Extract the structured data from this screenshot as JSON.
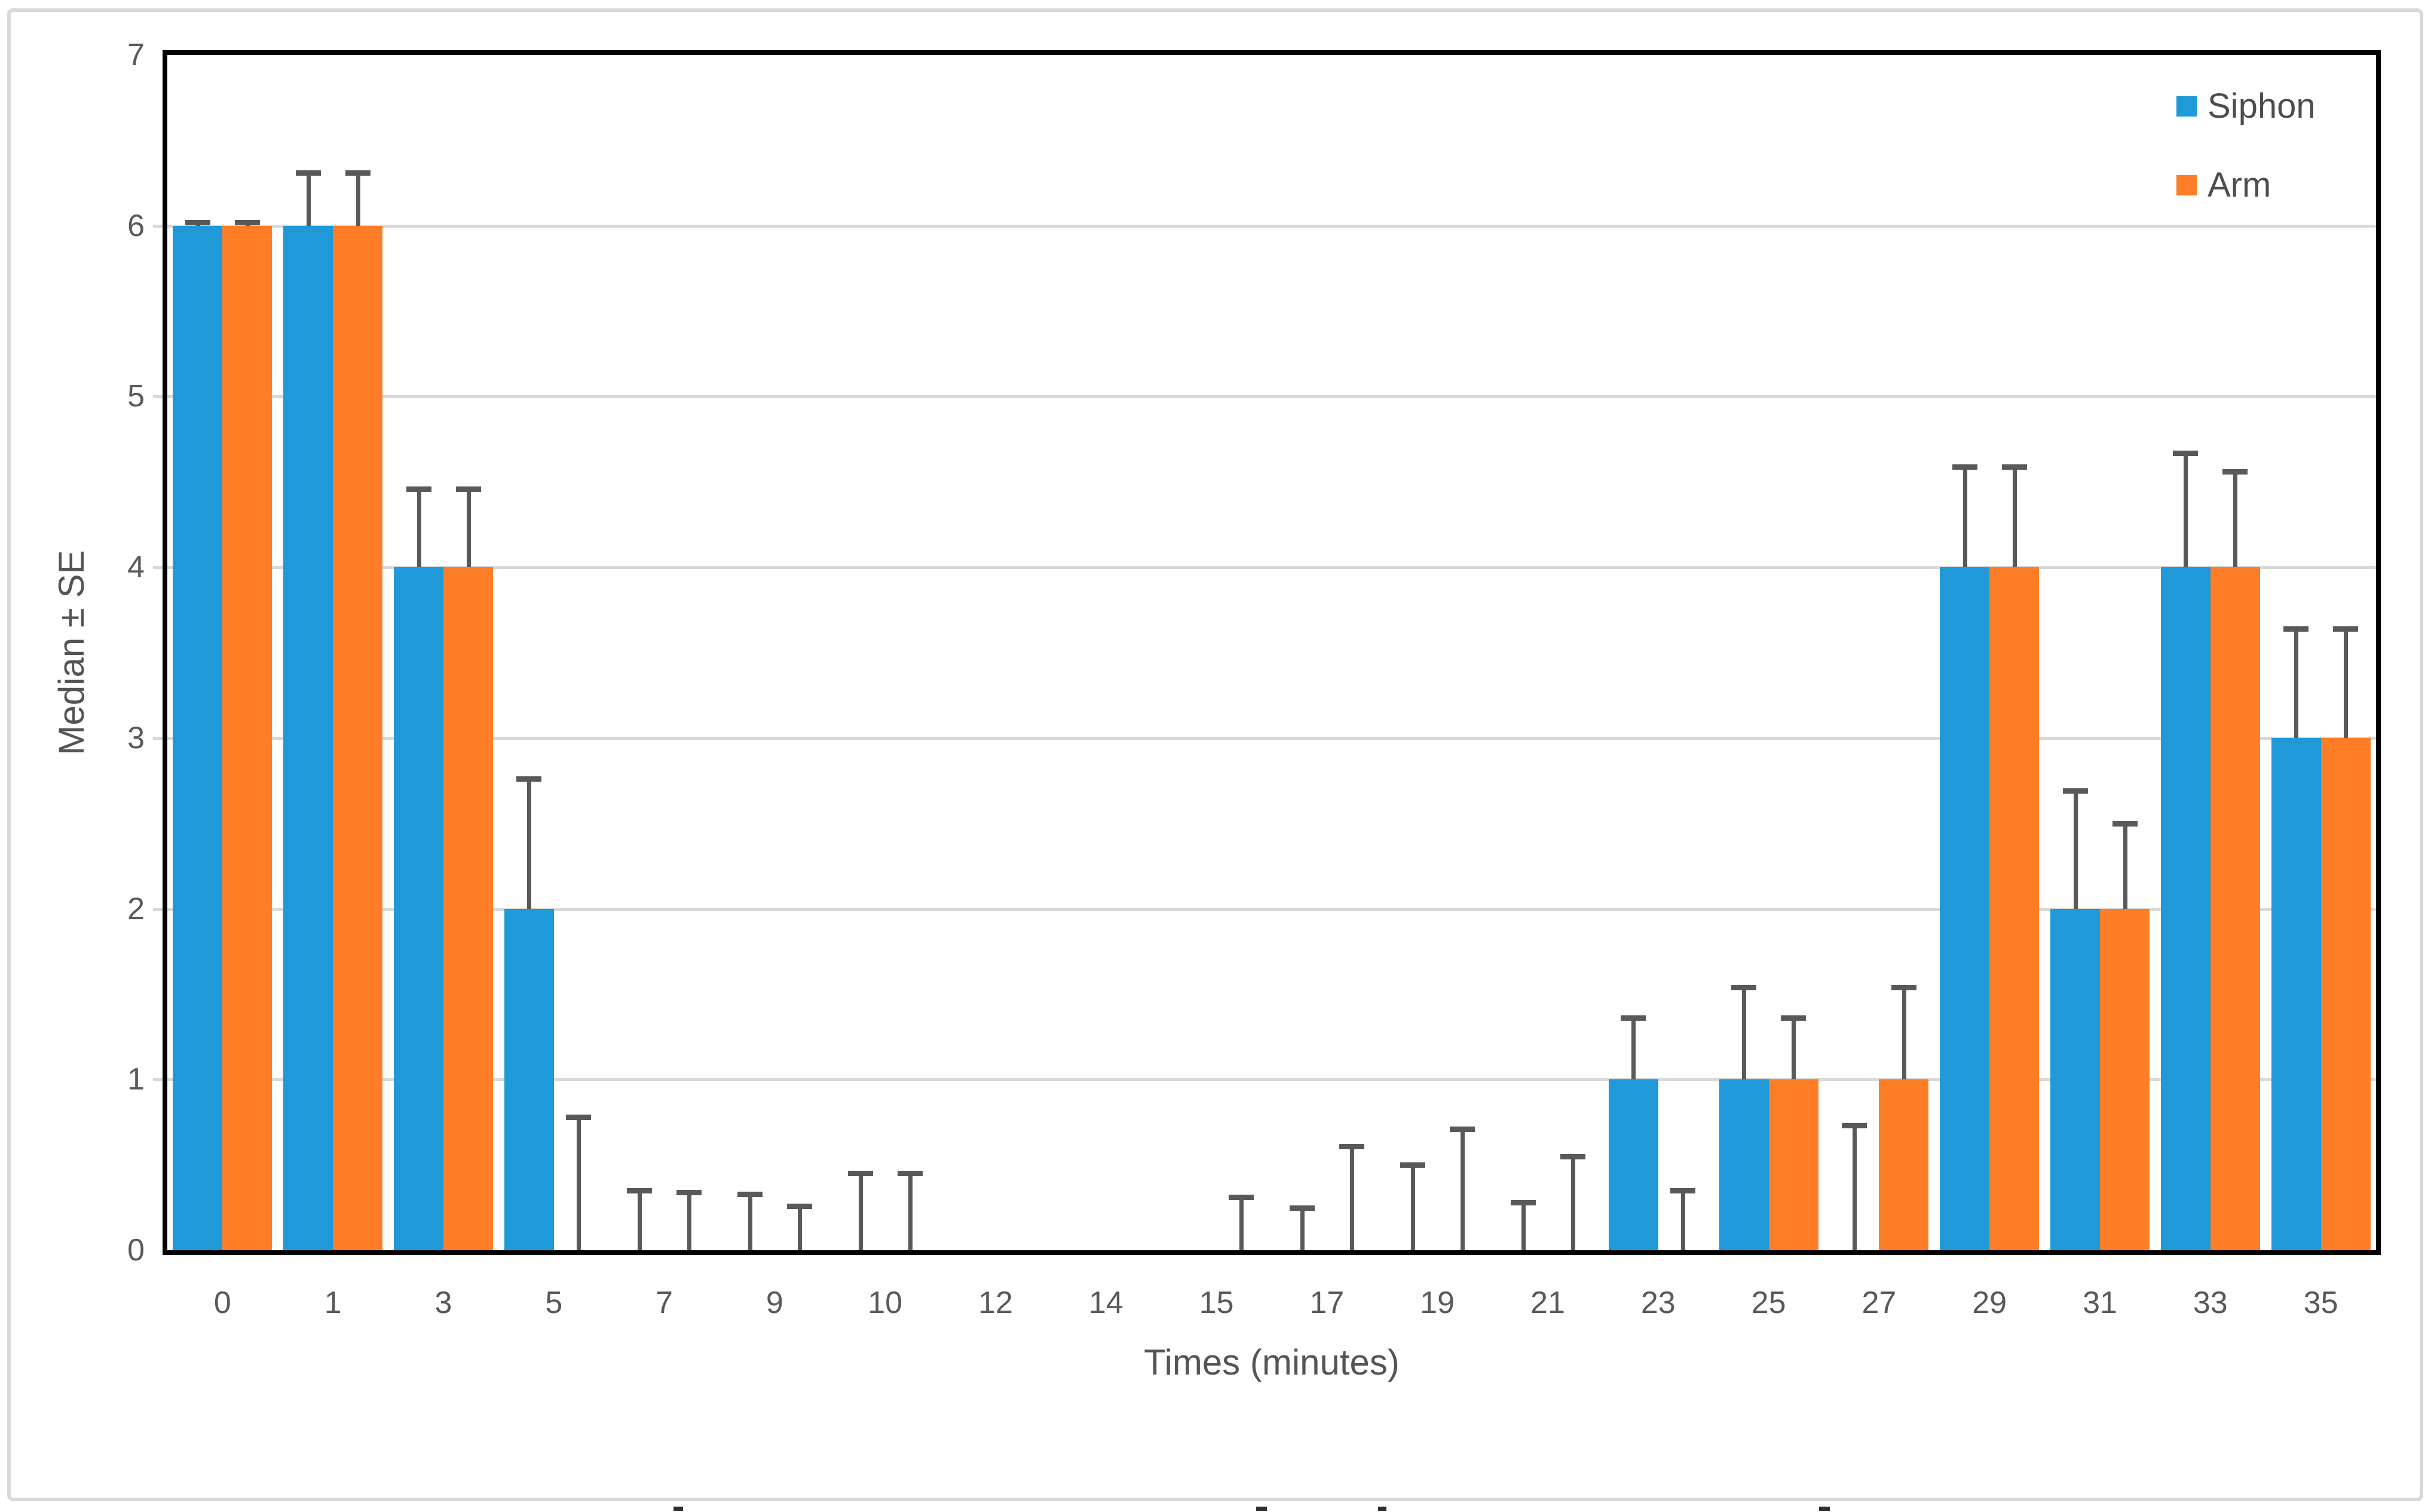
{
  "chart_data": {
    "type": "bar",
    "title": "",
    "xlabel": "Times (minutes)",
    "ylabel": "Median ± SE",
    "categories": [
      "0",
      "1",
      "3",
      "5",
      "7",
      "9",
      "10",
      "12",
      "14",
      "15",
      "17",
      "19",
      "21",
      "23",
      "25",
      "27",
      "29",
      "31",
      "33",
      "35"
    ],
    "ylim": [
      0,
      7
    ],
    "yticks": [
      0,
      1,
      2,
      3,
      4,
      5,
      6,
      7
    ],
    "grid": true,
    "legend_position": "top-right-inside",
    "error_bars": "upper-only-with-caps",
    "series": [
      {
        "name": "Siphon",
        "color": "#2099D8",
        "values": [
          6,
          6,
          4,
          2,
          0,
          0,
          0,
          0,
          0,
          0,
          0,
          0,
          0,
          1,
          1,
          0,
          4,
          2,
          4,
          3
        ],
        "se_upper": [
          0.02,
          0.31,
          0.46,
          0.76,
          0.35,
          0.33,
          0.45,
          null,
          null,
          null,
          0.25,
          0.5,
          0.28,
          0.36,
          0.54,
          0.73,
          0.59,
          0.69,
          0.67,
          0.64
        ]
      },
      {
        "name": "Arm",
        "color": "#FD7E27",
        "values": [
          6,
          6,
          4,
          0,
          0,
          0,
          0,
          0,
          0,
          0,
          0,
          0,
          0,
          0,
          1,
          1,
          4,
          2,
          4,
          3
        ],
        "se_upper": [
          0.02,
          0.31,
          0.46,
          0.78,
          0.34,
          0.26,
          0.45,
          null,
          null,
          0.31,
          0.61,
          0.71,
          0.55,
          0.35,
          0.36,
          0.54,
          0.59,
          0.5,
          0.56,
          0.64
        ]
      }
    ]
  },
  "style": {
    "gridline_color": "#d9d9d9",
    "error_bar_color": "#595959",
    "axis_border_color": "#000000",
    "tick_label_color": "#595959",
    "axis_title_color": "#545454",
    "figure_border_color": "#d9d9d9",
    "background_color": "#ffffff"
  },
  "artifacts": {
    "bottom_crop_marks": [
      {
        "x": 1127,
        "w": 16
      },
      {
        "x": 2102,
        "w": 18
      },
      {
        "x": 2306,
        "w": 14
      },
      {
        "x": 3044,
        "w": 18
      }
    ]
  }
}
